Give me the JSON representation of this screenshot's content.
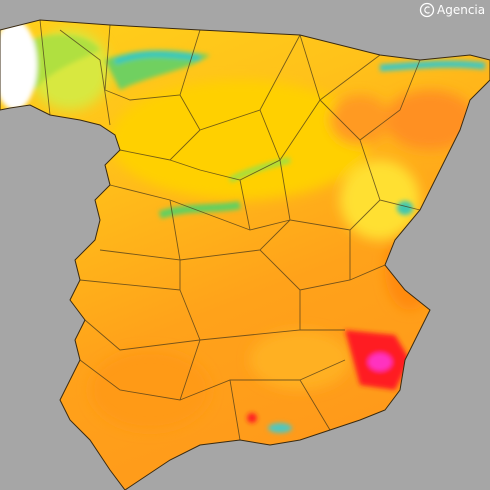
{
  "credit": "Agencia"
}
